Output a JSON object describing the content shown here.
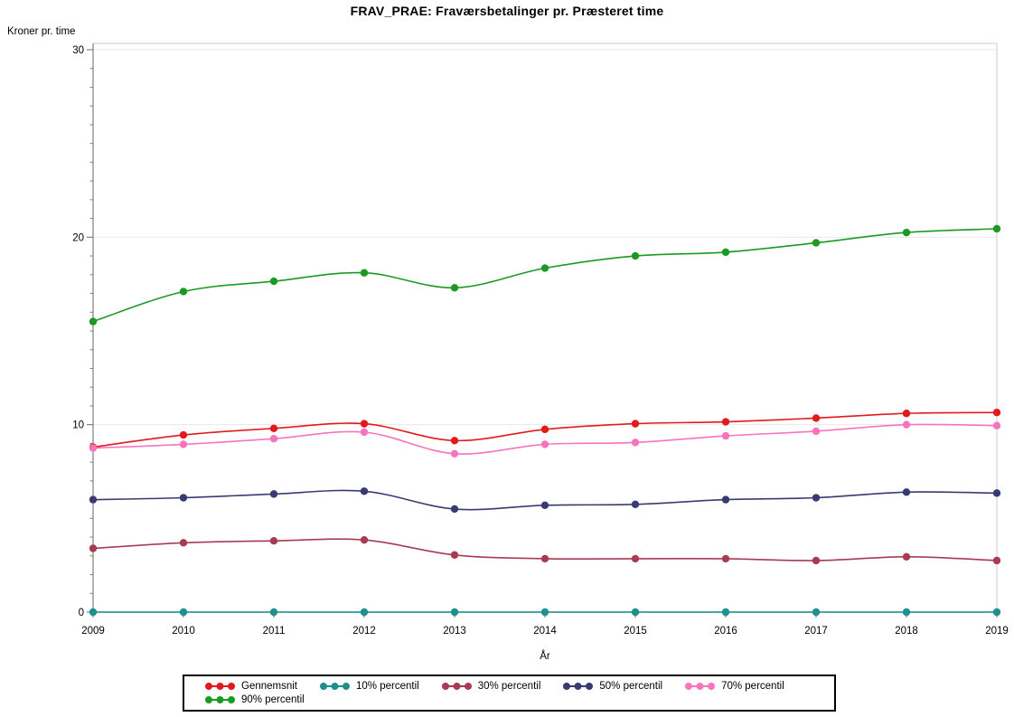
{
  "title": "FRAV_PRAE: Fraværsbetalinger pr. Præsteret time",
  "chart_data": {
    "type": "line",
    "title": "FRAV_PRAE: Fraværsbetalinger pr. Præsteret time",
    "xlabel": "År",
    "ylabel": "Kroner pr. time",
    "x": [
      2009,
      2010,
      2011,
      2012,
      2013,
      2014,
      2015,
      2016,
      2017,
      2018,
      2019
    ],
    "ylim": [
      0,
      30
    ],
    "yticks": [
      0,
      10,
      20,
      30
    ],
    "y_minor_tick_step": 1,
    "grid": "horizontal-major",
    "legend_position": "bottom",
    "marker": "filled-circle",
    "series": [
      {
        "name": "Gennemsnit",
        "color": "#e21a1c",
        "values": [
          8.8,
          9.45,
          9.8,
          10.05,
          9.15,
          9.75,
          10.05,
          10.15,
          10.35,
          10.6,
          10.65
        ]
      },
      {
        "name": "10% percentil",
        "color": "#1f8f8f",
        "values": [
          0,
          0,
          0,
          0,
          0,
          0,
          0,
          0,
          0,
          0,
          0
        ]
      },
      {
        "name": "30% percentil",
        "color": "#a63b52",
        "values": [
          3.4,
          3.7,
          3.8,
          3.85,
          3.05,
          2.85,
          2.85,
          2.85,
          2.75,
          2.95,
          2.75
        ]
      },
      {
        "name": "50% percentil",
        "color": "#3a3a73",
        "values": [
          6.0,
          6.1,
          6.3,
          6.45,
          5.5,
          5.7,
          5.75,
          6.0,
          6.1,
          6.4,
          6.35
        ]
      },
      {
        "name": "70% percentil",
        "color": "#f973bd",
        "values": [
          8.75,
          8.95,
          9.25,
          9.6,
          8.45,
          8.95,
          9.05,
          9.4,
          9.65,
          10.0,
          9.95
        ]
      },
      {
        "name": "90% percentil",
        "color": "#1a9a21",
        "values": [
          15.5,
          17.1,
          17.65,
          18.1,
          17.3,
          18.35,
          19.0,
          19.2,
          19.7,
          20.25,
          20.45
        ]
      }
    ],
    "axis_color": "#808080",
    "frame_color": "#cbcbcb",
    "gridline_color": "#e8e8e8"
  }
}
